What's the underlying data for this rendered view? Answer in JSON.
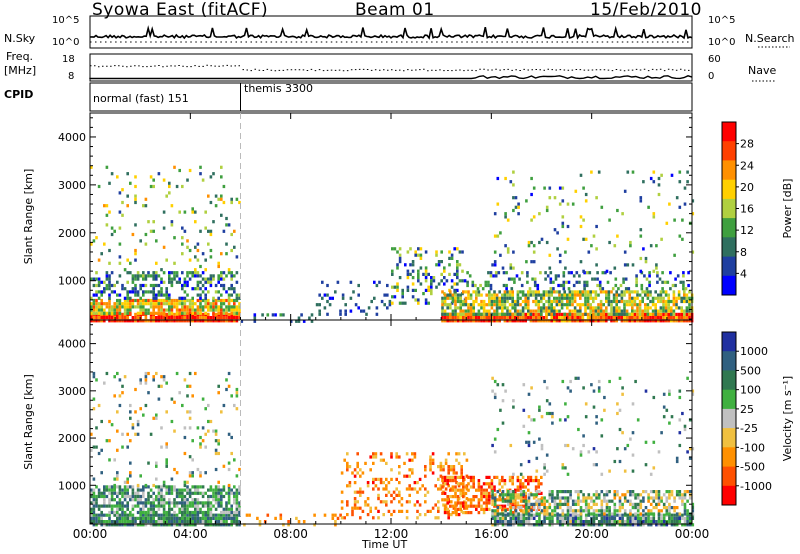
{
  "header": {
    "station": "Syowa East (fitACF)",
    "beam": "Beam 01",
    "date": "15/Feb/2010"
  },
  "params": {
    "nsky_label": "N.Sky",
    "nsearch_label": "N.Search",
    "freq_label": "Freq.",
    "freq_unit": "[MHz]",
    "nave_label": "Nave",
    "cpid_label": "CPID",
    "nsky_ticks": [
      "10^5",
      "10^0"
    ],
    "nsearch_ticks": [
      "10^5",
      "10^0"
    ],
    "freq_ticks": [
      "18",
      "8"
    ],
    "nave_ticks": [
      "60",
      "0"
    ],
    "cpid_modes": [
      {
        "name": "normal (fast) 151",
        "start": "00:00",
        "end": "06:00"
      },
      {
        "name": "themis 3300",
        "start": "06:00",
        "end": "24:00"
      }
    ]
  },
  "panels": {
    "power": {
      "ylabel": "Slant Range [km]",
      "cbar_label": "Power [dB]"
    },
    "velocity": {
      "ylabel": "Slant Range [km]",
      "cbar_label": "Velocity [m s⁻¹]"
    }
  },
  "xaxis": {
    "label": "Time UT",
    "ticks": [
      "00:00",
      "04:00",
      "08:00",
      "12:00",
      "16:00",
      "20:00",
      "00:00"
    ]
  },
  "colors": {
    "power_scale": [
      "#0000ff",
      "#1f3fa0",
      "#2f6f5f",
      "#3f9f3f",
      "#b0d040",
      "#ffd000",
      "#ff9000",
      "#ff4000",
      "#ff0000"
    ],
    "velocity_scale": [
      "#2030a0",
      "#306080",
      "#307850",
      "#40b040",
      "#c0c0c0",
      "#f0c040",
      "#ff9000",
      "#ff5000",
      "#ff0000"
    ]
  },
  "chart_data": [
    {
      "type": "heatmap",
      "name": "power",
      "xlabel": "Time UT",
      "ylabel": "Slant Range [km]",
      "xlim": [
        0,
        24
      ],
      "ylim": [
        180,
        4500
      ],
      "yticks": [
        1000,
        2000,
        3000,
        4000
      ],
      "xticks": [
        "00:00",
        "04:00",
        "08:00",
        "12:00",
        "16:00",
        "20:00",
        "00:00"
      ],
      "colorbar": {
        "label": "Power [dB]",
        "ticks": [
          "4",
          "8",
          "12",
          "16",
          "20",
          "24",
          "28"
        ],
        "range": [
          0,
          30
        ]
      },
      "regions": [
        {
          "t": [
            0,
            6
          ],
          "r": [
            180,
            600
          ],
          "level": "high"
        },
        {
          "t": [
            0,
            6
          ],
          "r": [
            600,
            1200
          ],
          "level": "medium"
        },
        {
          "t": [
            0,
            6
          ],
          "r": [
            1200,
            3400
          ],
          "level": "sparse"
        },
        {
          "t": [
            6,
            9
          ],
          "r": [
            180,
            300
          ],
          "level": "sparse"
        },
        {
          "t": [
            10,
            15
          ],
          "r": [
            300,
            1700
          ],
          "level": "sparse-low"
        },
        {
          "t": [
            14,
            24
          ],
          "r": [
            180,
            900
          ],
          "level": "high"
        },
        {
          "t": [
            14,
            24
          ],
          "r": [
            900,
            1200
          ],
          "level": "medium"
        },
        {
          "t": [
            16,
            24
          ],
          "r": [
            1200,
            3300
          ],
          "level": "sparse"
        }
      ]
    },
    {
      "type": "heatmap",
      "name": "velocity",
      "xlabel": "Time UT",
      "ylabel": "Slant Range [km]",
      "xlim": [
        0,
        24
      ],
      "ylim": [
        180,
        4500
      ],
      "yticks": [
        1000,
        2000,
        3000,
        4000
      ],
      "xticks": [
        "00:00",
        "04:00",
        "08:00",
        "12:00",
        "16:00",
        "20:00",
        "00:00"
      ],
      "colorbar": {
        "label": "Velocity [m s⁻¹]",
        "ticks": [
          "1000",
          "500",
          "100",
          "25",
          "-25",
          "-100",
          "-500",
          "-1000"
        ],
        "range": [
          -1000,
          1000
        ]
      },
      "regions": [
        {
          "t": [
            0,
            6
          ],
          "r": [
            180,
            1000
          ],
          "level": "positive"
        },
        {
          "t": [
            0,
            6
          ],
          "r": [
            1000,
            3400
          ],
          "level": "sparse-mixed"
        },
        {
          "t": [
            6,
            10
          ],
          "r": [
            180,
            400
          ],
          "level": "sparse-negative"
        },
        {
          "t": [
            10,
            15
          ],
          "r": [
            300,
            1700
          ],
          "level": "negative"
        },
        {
          "t": [
            14,
            18
          ],
          "r": [
            400,
            1200
          ],
          "level": "negative"
        },
        {
          "t": [
            16,
            24
          ],
          "r": [
            180,
            900
          ],
          "level": "mixed"
        },
        {
          "t": [
            16,
            24
          ],
          "r": [
            1200,
            3300
          ],
          "level": "sparse-positive"
        }
      ]
    }
  ]
}
